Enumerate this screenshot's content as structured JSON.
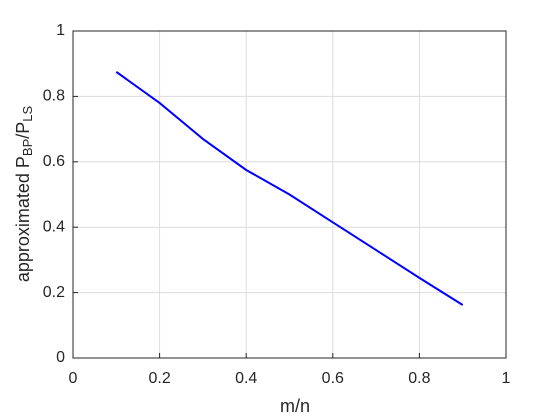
{
  "chart_data": {
    "type": "line",
    "x_label": "m/n",
    "y_label": [
      "approximated P",
      "BP",
      "/P",
      "LS"
    ],
    "x": [
      0.1,
      0.2,
      0.3,
      0.4,
      0.5,
      0.6,
      0.7,
      0.8,
      0.9
    ],
    "series": [
      {
        "color": "#0000ff",
        "values": [
          0.875,
          0.78,
          0.67,
          0.575,
          0.5,
          0.415,
          0.33,
          0.245,
          0.162
        ]
      }
    ],
    "xlim": [
      0,
      1
    ],
    "ylim": [
      0,
      1
    ],
    "xticks": [
      0,
      0.2,
      0.4,
      0.6,
      0.8,
      1
    ],
    "yticks": [
      0,
      0.2,
      0.4,
      0.6,
      0.8,
      1
    ],
    "grid": true
  }
}
